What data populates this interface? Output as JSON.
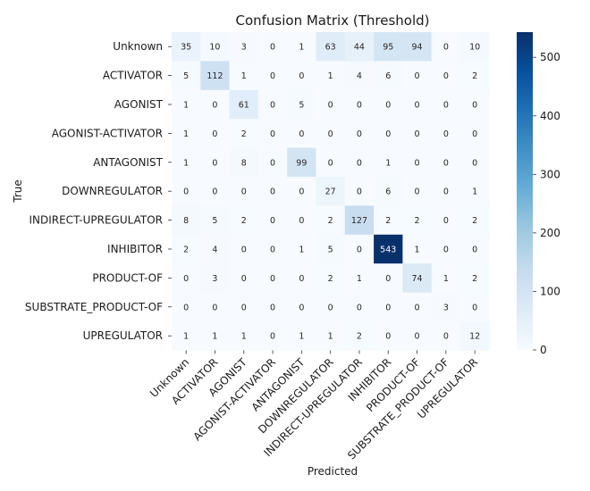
{
  "chart_data": {
    "type": "heatmap",
    "title": "Confusion Matrix (Threshold)",
    "xlabel": "Predicted",
    "ylabel": "True",
    "row_labels": [
      "Unknown",
      "ACTIVATOR",
      "AGONIST",
      "AGONIST-ACTIVATOR",
      "ANTAGONIST",
      "DOWNREGULATOR",
      "INDIRECT-UPREGULATOR",
      "INHIBITOR",
      "PRODUCT-OF",
      "SUBSTRATE_PRODUCT-OF",
      "UPREGULATOR"
    ],
    "col_labels": [
      "Unknown",
      "ACTIVATOR",
      "AGONIST",
      "AGONIST-ACTIVATOR",
      "ANTAGONIST",
      "DOWNREGULATOR",
      "INDIRECT-UPREGULATOR",
      "INHIBITOR",
      "PRODUCT-OF",
      "SUBSTRATE_PRODUCT-OF",
      "UPREGULATOR"
    ],
    "values": [
      [
        35,
        10,
        3,
        0,
        1,
        63,
        44,
        95,
        94,
        0,
        10
      ],
      [
        5,
        112,
        1,
        0,
        0,
        1,
        4,
        6,
        0,
        0,
        2
      ],
      [
        1,
        0,
        61,
        0,
        5,
        0,
        0,
        0,
        0,
        0,
        0
      ],
      [
        1,
        0,
        2,
        0,
        0,
        0,
        0,
        0,
        0,
        0,
        0
      ],
      [
        1,
        0,
        8,
        0,
        99,
        0,
        0,
        1,
        0,
        0,
        0
      ],
      [
        0,
        0,
        0,
        0,
        0,
        27,
        0,
        6,
        0,
        0,
        1
      ],
      [
        8,
        5,
        2,
        0,
        0,
        2,
        127,
        2,
        2,
        0,
        2
      ],
      [
        2,
        4,
        0,
        0,
        1,
        5,
        0,
        543,
        1,
        0,
        0
      ],
      [
        0,
        3,
        0,
        0,
        0,
        2,
        1,
        0,
        74,
        1,
        2
      ],
      [
        0,
        0,
        0,
        0,
        0,
        0,
        0,
        0,
        0,
        3,
        0
      ],
      [
        1,
        1,
        1,
        0,
        1,
        1,
        2,
        0,
        0,
        0,
        12
      ]
    ],
    "colorbar": {
      "min": 0,
      "max": 543,
      "ticks": [
        0,
        100,
        200,
        300,
        400,
        500
      ]
    },
    "colormap": "Blues",
    "colors": {
      "low": "#f7fbff",
      "high": "#08306b"
    }
  }
}
